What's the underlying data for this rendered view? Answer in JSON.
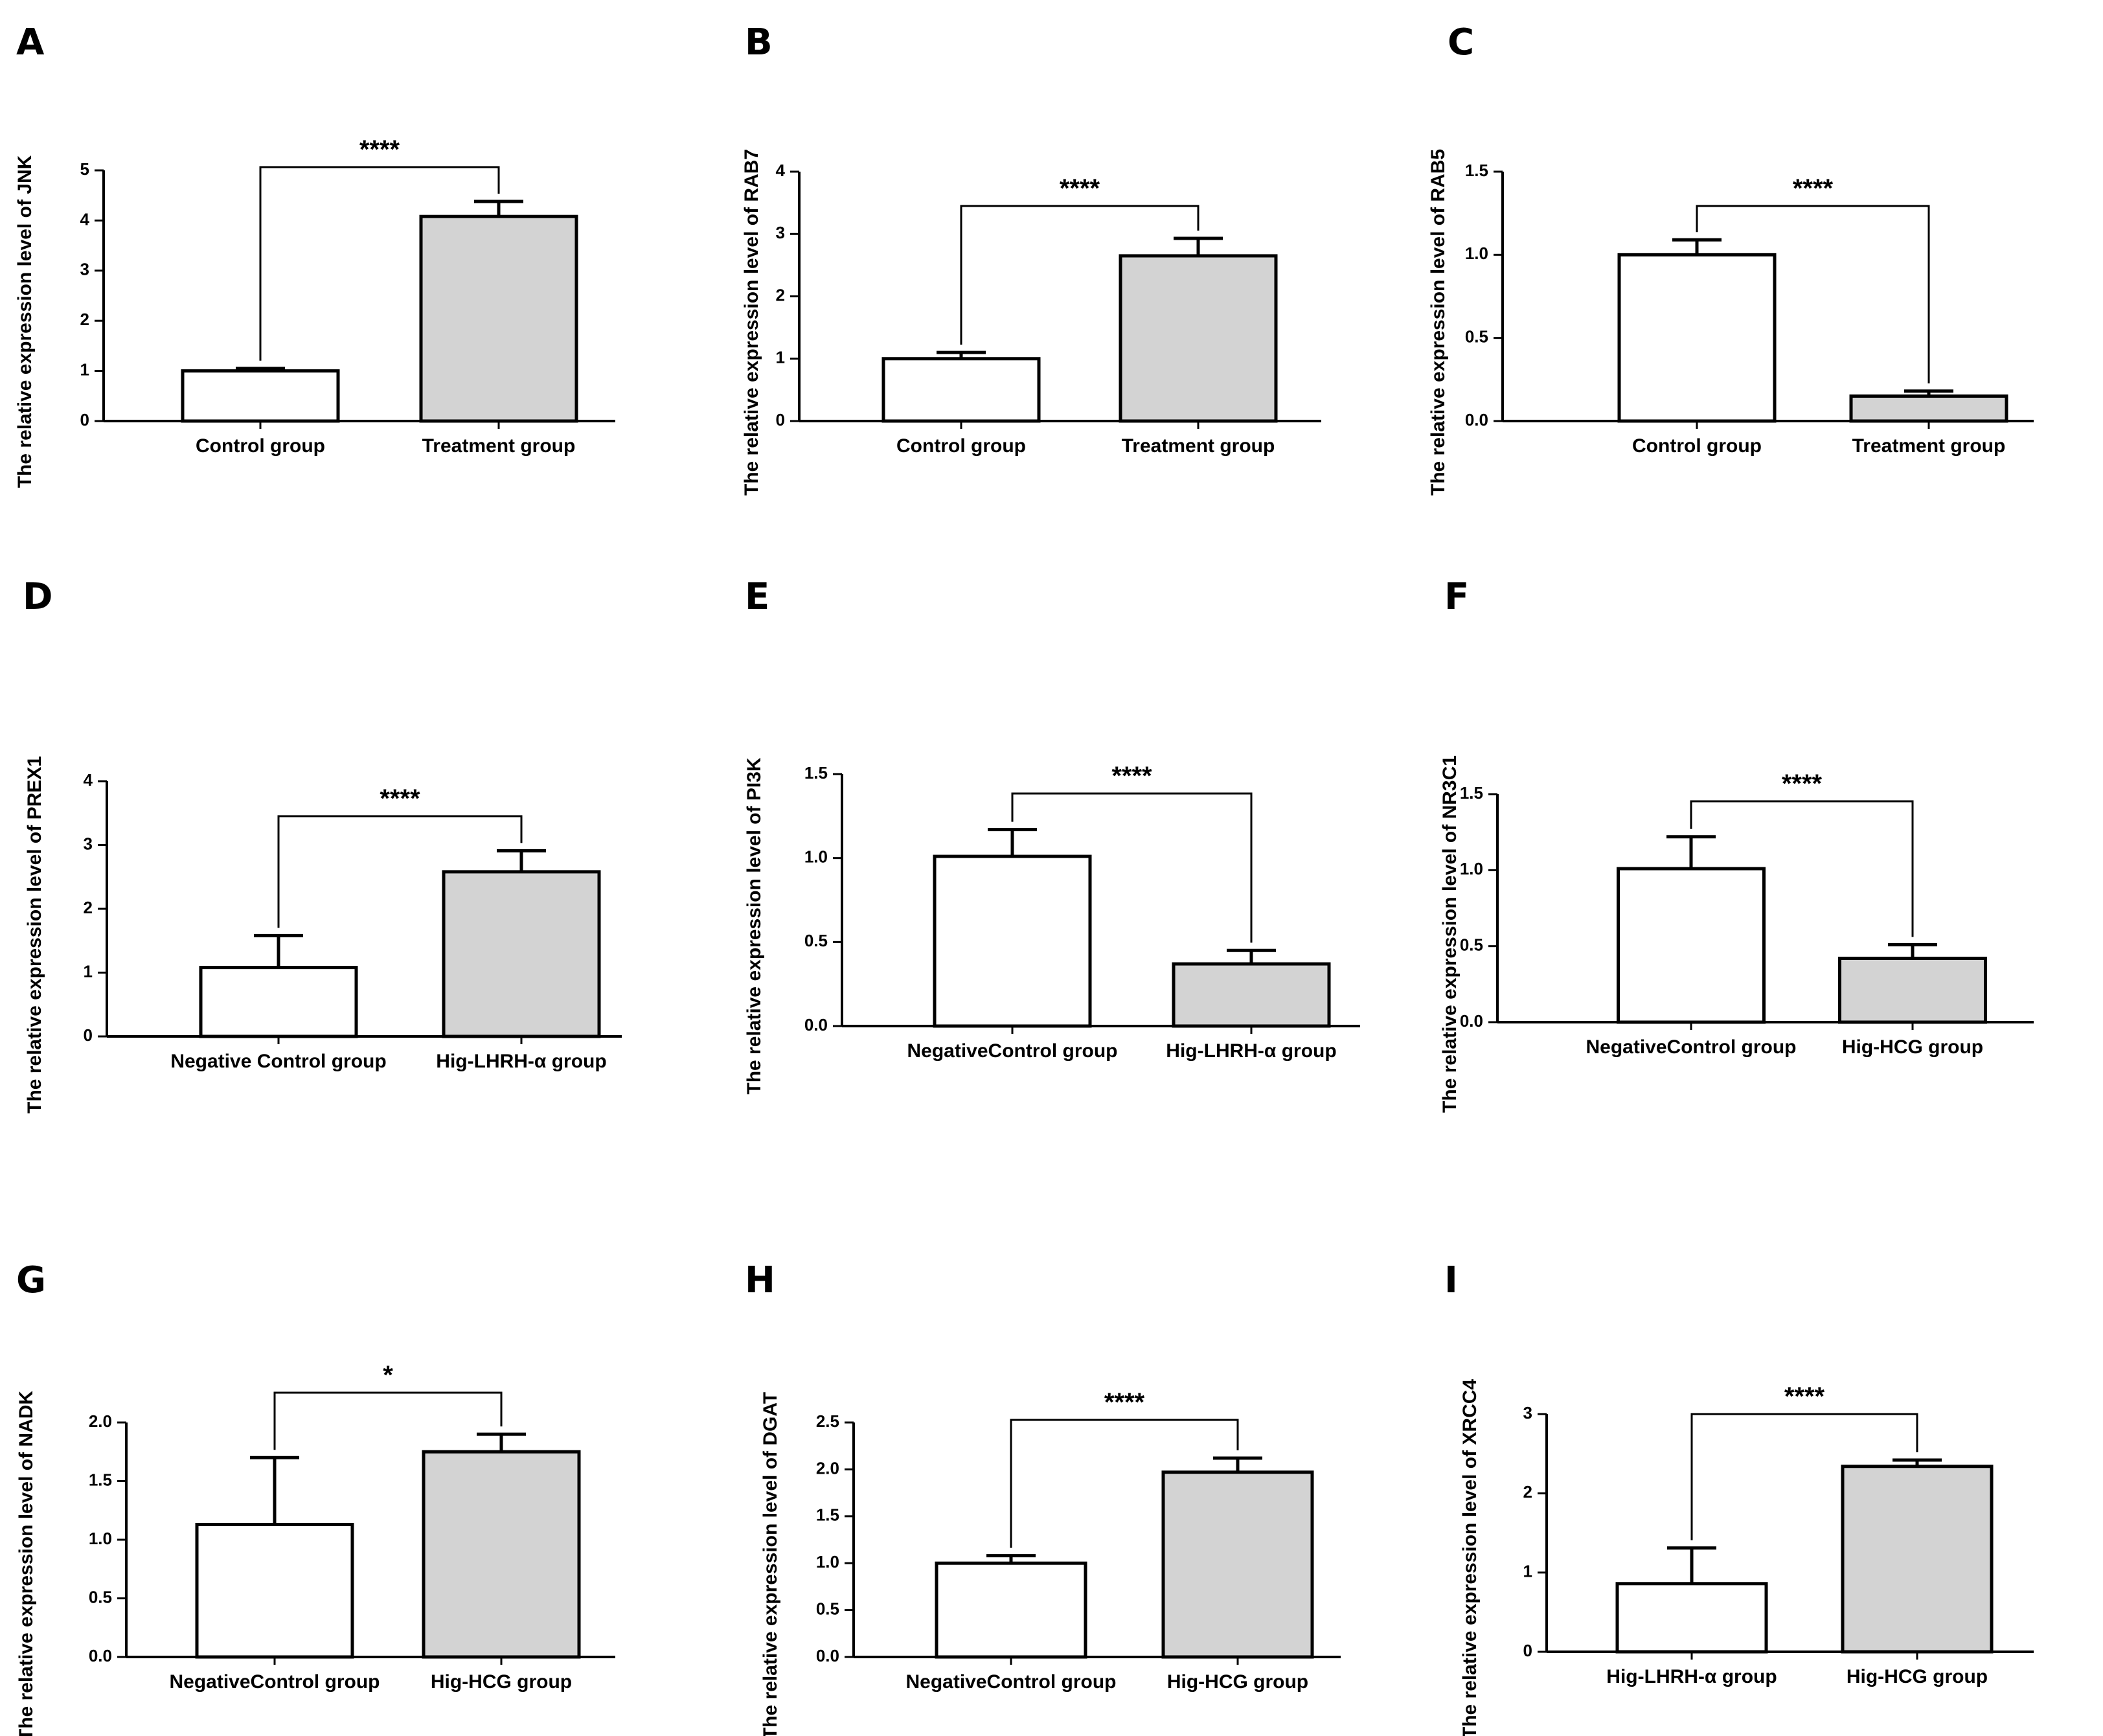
{
  "colors": {
    "control": "#ffffff",
    "treatment": "#d3d3d3",
    "stroke": "#000000"
  },
  "chart_data": [
    {
      "panel": "A",
      "type": "bar",
      "ylabel": "The relative expression level of JNK",
      "categories": [
        "Control group",
        "Treatment group"
      ],
      "values": [
        1.0,
        4.08
      ],
      "errors": [
        0.05,
        0.3
      ],
      "ylim": [
        0,
        5
      ],
      "ticks": [
        "0",
        "1",
        "2",
        "3",
        "4",
        "5"
      ],
      "tick_values": [
        0,
        1,
        2,
        3,
        4,
        5
      ],
      "significance": "****"
    },
    {
      "panel": "B",
      "type": "bar",
      "ylabel": "The relative expression level of RAB7",
      "categories": [
        "Control group",
        "Treatment group"
      ],
      "values": [
        1.0,
        2.65
      ],
      "errors": [
        0.1,
        0.28
      ],
      "ylim": [
        0,
        4
      ],
      "ticks": [
        "0",
        "1",
        "2",
        "3",
        "4"
      ],
      "tick_values": [
        0,
        1,
        2,
        3,
        4
      ],
      "significance": "****"
    },
    {
      "panel": "C",
      "type": "bar",
      "ylabel": "The relative expression level of RAB5",
      "categories": [
        "Control group",
        "Treatment group"
      ],
      "values": [
        1.0,
        0.15
      ],
      "errors": [
        0.09,
        0.03
      ],
      "ylim": [
        0,
        1.5
      ],
      "ticks": [
        "0.0",
        "0.5",
        "1.0",
        "1.5"
      ],
      "tick_values": [
        0,
        0.5,
        1.0,
        1.5
      ],
      "significance": "****"
    },
    {
      "panel": "D",
      "type": "bar",
      "ylabel": "The relative expression level of PREX1",
      "categories": [
        "Negative Control group",
        "Hig-LHRH-α group"
      ],
      "values": [
        1.08,
        2.58
      ],
      "errors": [
        0.5,
        0.33
      ],
      "ylim": [
        0,
        4
      ],
      "ticks": [
        "0",
        "1",
        "2",
        "3",
        "4"
      ],
      "tick_values": [
        0,
        1,
        2,
        3,
        4
      ],
      "significance": "****"
    },
    {
      "panel": "E",
      "type": "bar",
      "ylabel": "The relative expression level of PI3K",
      "categories": [
        "NegativeControl group",
        "Hig-LHRH-α group"
      ],
      "values": [
        1.01,
        0.37
      ],
      "errors": [
        0.16,
        0.08
      ],
      "ylim": [
        0,
        1.5
      ],
      "ticks": [
        "0.0",
        "0.5",
        "1.0",
        "1.5"
      ],
      "tick_values": [
        0,
        0.5,
        1.0,
        1.5
      ],
      "significance": "****"
    },
    {
      "panel": "F",
      "type": "bar",
      "ylabel": "The relative expression level of NR3C1",
      "categories": [
        "NegativeControl group",
        "Hig-HCG group"
      ],
      "values": [
        1.01,
        0.42
      ],
      "errors": [
        0.21,
        0.09
      ],
      "ylim": [
        0,
        1.5
      ],
      "ticks": [
        "0.0",
        "0.5",
        "1.0",
        "1.5"
      ],
      "tick_values": [
        0,
        0.5,
        1.0,
        1.5
      ],
      "significance": "****"
    },
    {
      "panel": "G",
      "type": "bar",
      "ylabel": "The relative expression level of NADK",
      "categories": [
        "NegativeControl group",
        "Hig-HCG group"
      ],
      "values": [
        1.13,
        1.75
      ],
      "errors": [
        0.57,
        0.15
      ],
      "ylim": [
        0,
        2.0
      ],
      "ticks": [
        "0.0",
        "0.5",
        "1.0",
        "1.5",
        "2.0"
      ],
      "tick_values": [
        0,
        0.5,
        1.0,
        1.5,
        2.0
      ],
      "significance": "*"
    },
    {
      "panel": "H",
      "type": "bar",
      "ylabel": "The relative expression level of DGAT",
      "categories": [
        "NegativeControl group",
        "Hig-HCG group"
      ],
      "values": [
        1.0,
        1.97
      ],
      "errors": [
        0.08,
        0.15
      ],
      "ylim": [
        0,
        2.5
      ],
      "ticks": [
        "0.0",
        "0.5",
        "1.0",
        "1.5",
        "2.0",
        "2.5"
      ],
      "tick_values": [
        0,
        0.5,
        1.0,
        1.5,
        2.0,
        2.5
      ],
      "significance": "****"
    },
    {
      "panel": "I",
      "type": "bar",
      "ylabel": "The relative expression level of XRCC4",
      "categories": [
        "Hig-LHRH-α group",
        "Hig-HCG group"
      ],
      "values": [
        0.86,
        2.34
      ],
      "errors": [
        0.45,
        0.08
      ],
      "ylim": [
        0,
        3
      ],
      "ticks": [
        "0",
        "1",
        "2",
        "3"
      ],
      "tick_values": [
        0,
        1,
        2,
        3
      ],
      "significance": "****"
    }
  ]
}
